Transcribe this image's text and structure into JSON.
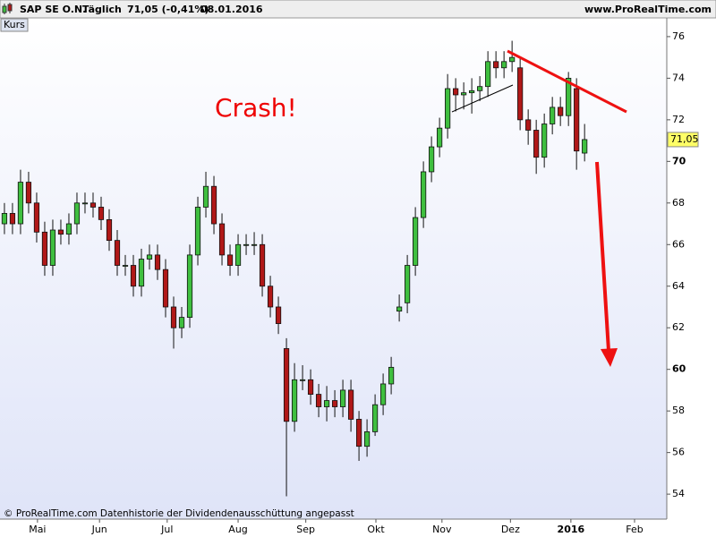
{
  "chart_data": {
    "type": "candlestick",
    "header": {
      "symbol": "SAP SE O.N.",
      "period": "Täglich",
      "quote": "71,05 (-0,41%)",
      "date": "08.01.2016",
      "site": "www.ProRealTime.com"
    },
    "annotation": "Crash!",
    "footer": "© ProRealTime.com Datenhistorie der Dividendenausschüttung angepasst",
    "series": [
      {
        "name": "Kurs",
        "up_color": "#3fbf3f",
        "down_color": "#b01818",
        "open": [
          67,
          67.5,
          67,
          69,
          68,
          66.6,
          65,
          66.7,
          66.5,
          67,
          68,
          68,
          67.8,
          67.2,
          66.2,
          65,
          65,
          64,
          65.3,
          65.5,
          64.8,
          63,
          62,
          62.5,
          65.5,
          67.8,
          68.8,
          67,
          65.5,
          65,
          66,
          66,
          66,
          64,
          63,
          61,
          57.5,
          59.5,
          59.5,
          58.8,
          58.2,
          58.5,
          58.2,
          59,
          57.6,
          56.3,
          57,
          58.3,
          59.3,
          62.8,
          63.2,
          65,
          67.3,
          69.5,
          70.7,
          71.6,
          73.5,
          73.2,
          73.3,
          73.4,
          73.6,
          74.8,
          74.5,
          74.8,
          74.5,
          72,
          71.5,
          70.2,
          71.8,
          72.6,
          72.2,
          73.5,
          70.4
        ],
        "high": [
          68,
          68,
          69.6,
          69.5,
          68.5,
          67.1,
          67.2,
          67.2,
          67.5,
          68.5,
          68.5,
          68.5,
          68.3,
          67.7,
          66.7,
          65.5,
          65.5,
          65.8,
          66,
          66,
          65.3,
          63.5,
          63,
          66,
          68.3,
          69.5,
          69.3,
          67.5,
          66,
          66.5,
          66.5,
          66.6,
          66.5,
          64.5,
          63.5,
          61.5,
          60.3,
          60.2,
          60,
          59.3,
          59.2,
          59,
          59.5,
          59.5,
          58,
          57.6,
          58.8,
          59.8,
          60.6,
          63.6,
          65.5,
          67.8,
          70,
          71.2,
          72.1,
          74.2,
          74,
          73.8,
          74,
          74.1,
          75.3,
          75.3,
          75.3,
          75.8,
          75,
          72.5,
          72,
          72.3,
          73.1,
          73.1,
          74.3,
          74,
          71.8
        ],
        "low": [
          66.5,
          66.5,
          66.5,
          67.5,
          66.1,
          64.5,
          64.5,
          66,
          66,
          66.5,
          67.5,
          67.3,
          66.7,
          65.7,
          64.5,
          64.5,
          63.5,
          63.5,
          64.8,
          64.3,
          62.5,
          61,
          61.5,
          62,
          65,
          67.3,
          66.5,
          65,
          64.5,
          64.5,
          65.5,
          65.5,
          63.5,
          62.5,
          61.7,
          53.9,
          57,
          59,
          58.3,
          57.7,
          57.5,
          57.7,
          57.7,
          57,
          55.6,
          55.8,
          56.8,
          57.8,
          58.8,
          62.3,
          62.7,
          64.5,
          66.8,
          69,
          70.2,
          71.1,
          72.4,
          72.5,
          72.3,
          72.9,
          73.1,
          74,
          74,
          74.3,
          71.5,
          70.8,
          69.4,
          69.7,
          71.3,
          71.7,
          71.7,
          69.6,
          70
        ],
        "close": [
          67.5,
          67,
          69,
          68,
          66.6,
          65,
          66.7,
          66.5,
          67,
          68,
          68,
          67.8,
          67.2,
          66.2,
          65,
          65,
          64,
          65.3,
          65.5,
          64.8,
          63,
          62,
          62.5,
          65.5,
          67.8,
          68.8,
          67,
          65.5,
          65,
          66,
          66,
          66,
          64,
          63,
          62.2,
          57.5,
          59.5,
          59.5,
          58.8,
          58.2,
          58.5,
          58.2,
          59,
          57.6,
          56.3,
          57,
          58.3,
          59.3,
          60.1,
          63,
          65,
          67.3,
          69.5,
          70.7,
          71.6,
          73.5,
          73.2,
          73.3,
          73.4,
          73.6,
          74.8,
          74.5,
          74.8,
          75,
          72,
          71.5,
          70.2,
          71.8,
          72.6,
          72.2,
          74,
          70.5,
          71.05
        ]
      }
    ],
    "last_price": {
      "value": 71.05,
      "label": "71,05"
    },
    "marker_color": "#ffff66",
    "xlim": [
      -0.55,
      82.2
    ],
    "xticks": [
      {
        "value": 4.1,
        "label": "Mai"
      },
      {
        "value": 11.8,
        "label": "Jun"
      },
      {
        "value": 20.2,
        "label": "Jul"
      },
      {
        "value": 29,
        "label": "Aug"
      },
      {
        "value": 37.4,
        "label": "Sep"
      },
      {
        "value": 46.1,
        "label": "Okt"
      },
      {
        "value": 54.3,
        "label": "Nov"
      },
      {
        "value": 62.8,
        "label": "Dez"
      },
      {
        "value": 70.3,
        "label": "2016"
      },
      {
        "value": 78.2,
        "label": "Feb"
      }
    ],
    "ylim": [
      52.8,
      76.9
    ],
    "yticks": [
      54,
      56,
      58,
      60,
      62,
      64,
      66,
      68,
      70,
      72,
      74,
      76
    ]
  }
}
